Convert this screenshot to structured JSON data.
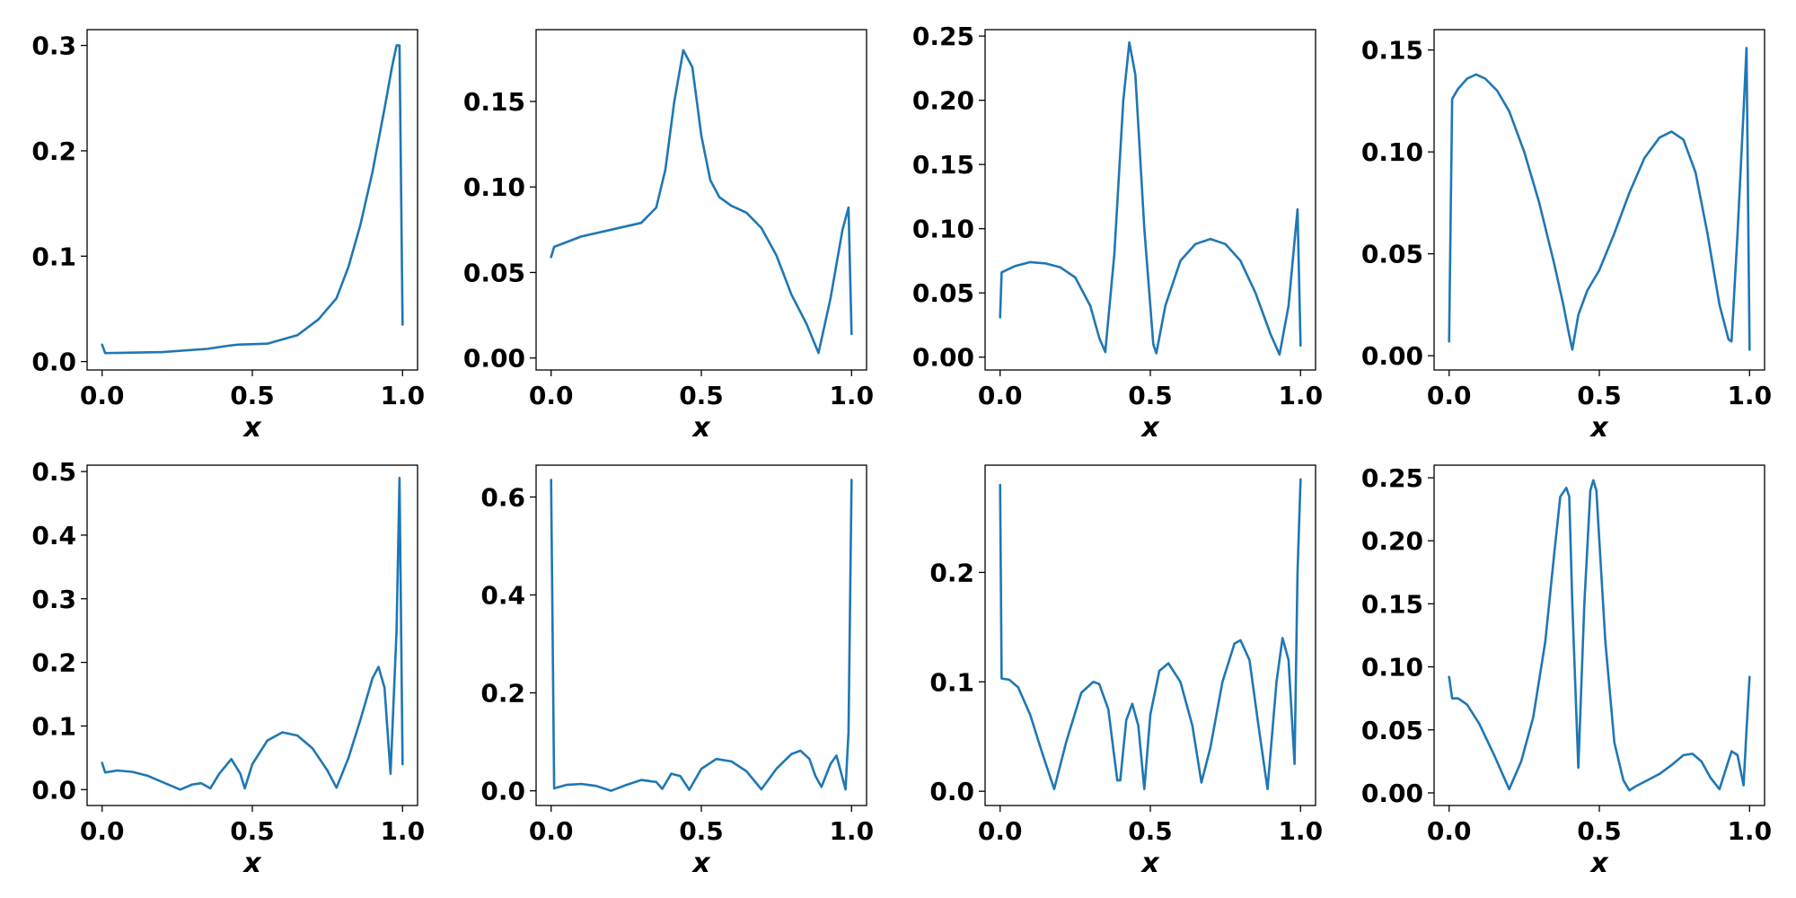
{
  "colors": {
    "line": "#1f77b4"
  },
  "chart_data": [
    {
      "type": "line",
      "xlabel": "x",
      "xlim": [
        -0.05,
        1.05
      ],
      "ylim": [
        -0.008,
        0.315
      ],
      "xticks": [
        0.0,
        0.5,
        1.0
      ],
      "xtick_labels": [
        "0.0",
        "0.5",
        "1.0"
      ],
      "yticks": [
        0.0,
        0.1,
        0.2,
        0.3
      ],
      "ytick_labels": [
        "0.0",
        "0.1",
        "0.2",
        "0.3"
      ],
      "series": [
        {
          "x": [
            0.0,
            0.01,
            0.2,
            0.35,
            0.42,
            0.45,
            0.55,
            0.65,
            0.72,
            0.78,
            0.82,
            0.86,
            0.9,
            0.94,
            0.965,
            0.98,
            0.99,
            1.0
          ],
          "y": [
            0.016,
            0.008,
            0.009,
            0.012,
            0.015,
            0.016,
            0.017,
            0.025,
            0.04,
            0.06,
            0.09,
            0.13,
            0.18,
            0.24,
            0.28,
            0.3,
            0.3,
            0.035
          ]
        }
      ]
    },
    {
      "type": "line",
      "xlabel": "x",
      "xlim": [
        -0.05,
        1.05
      ],
      "ylim": [
        -0.007,
        0.192
      ],
      "xticks": [
        0.0,
        0.5,
        1.0
      ],
      "xtick_labels": [
        "0.0",
        "0.5",
        "1.0"
      ],
      "yticks": [
        0.0,
        0.05,
        0.1,
        0.15
      ],
      "ytick_labels": [
        "0.00",
        "0.05",
        "0.10",
        "0.15"
      ],
      "series": [
        {
          "x": [
            0.0,
            0.01,
            0.1,
            0.2,
            0.3,
            0.35,
            0.38,
            0.41,
            0.44,
            0.47,
            0.5,
            0.53,
            0.56,
            0.6,
            0.65,
            0.7,
            0.75,
            0.8,
            0.85,
            0.89,
            0.93,
            0.97,
            0.99,
            1.0
          ],
          "y": [
            0.059,
            0.065,
            0.071,
            0.075,
            0.079,
            0.088,
            0.11,
            0.15,
            0.18,
            0.17,
            0.13,
            0.104,
            0.094,
            0.089,
            0.085,
            0.076,
            0.06,
            0.037,
            0.02,
            0.003,
            0.035,
            0.075,
            0.088,
            0.014
          ]
        }
      ]
    },
    {
      "type": "line",
      "xlabel": "x",
      "xlim": [
        -0.05,
        1.05
      ],
      "ylim": [
        -0.01,
        0.255
      ],
      "xticks": [
        0.0,
        0.5,
        1.0
      ],
      "xtick_labels": [
        "0.0",
        "0.5",
        "1.0"
      ],
      "yticks": [
        0.0,
        0.05,
        0.1,
        0.15,
        0.2,
        0.25
      ],
      "ytick_labels": [
        "0.00",
        "0.05",
        "0.10",
        "0.15",
        "0.20",
        "0.25"
      ],
      "series": [
        {
          "x": [
            0.0,
            0.005,
            0.05,
            0.1,
            0.15,
            0.2,
            0.25,
            0.3,
            0.33,
            0.35,
            0.38,
            0.41,
            0.43,
            0.45,
            0.48,
            0.51,
            0.52,
            0.55,
            0.6,
            0.65,
            0.7,
            0.75,
            0.8,
            0.85,
            0.9,
            0.93,
            0.96,
            0.99,
            1.0
          ],
          "y": [
            0.031,
            0.066,
            0.071,
            0.074,
            0.073,
            0.07,
            0.062,
            0.04,
            0.015,
            0.004,
            0.08,
            0.2,
            0.245,
            0.22,
            0.1,
            0.01,
            0.003,
            0.04,
            0.075,
            0.088,
            0.092,
            0.088,
            0.075,
            0.05,
            0.018,
            0.002,
            0.04,
            0.115,
            0.009
          ]
        }
      ]
    },
    {
      "type": "line",
      "xlabel": "x",
      "xlim": [
        -0.05,
        1.05
      ],
      "ylim": [
        -0.007,
        0.16
      ],
      "xticks": [
        0.0,
        0.5,
        1.0
      ],
      "xtick_labels": [
        "0.0",
        "0.5",
        "1.0"
      ],
      "yticks": [
        0.0,
        0.05,
        0.1,
        0.15
      ],
      "ytick_labels": [
        "0.00",
        "0.05",
        "0.10",
        "0.15"
      ],
      "series": [
        {
          "x": [
            0.0,
            0.01,
            0.03,
            0.06,
            0.09,
            0.12,
            0.16,
            0.2,
            0.25,
            0.3,
            0.35,
            0.38,
            0.4,
            0.41,
            0.43,
            0.46,
            0.5,
            0.55,
            0.6,
            0.65,
            0.7,
            0.74,
            0.78,
            0.82,
            0.86,
            0.9,
            0.93,
            0.94,
            0.96,
            0.98,
            0.99,
            1.0
          ],
          "y": [
            0.007,
            0.126,
            0.131,
            0.136,
            0.138,
            0.136,
            0.13,
            0.12,
            0.1,
            0.075,
            0.045,
            0.025,
            0.01,
            0.003,
            0.02,
            0.032,
            0.042,
            0.06,
            0.08,
            0.097,
            0.107,
            0.11,
            0.106,
            0.09,
            0.06,
            0.025,
            0.008,
            0.007,
            0.06,
            0.12,
            0.151,
            0.003
          ]
        }
      ]
    },
    {
      "type": "line",
      "xlabel": "x",
      "xlim": [
        -0.05,
        1.05
      ],
      "ylim": [
        -0.025,
        0.51
      ],
      "xticks": [
        0.0,
        0.5,
        1.0
      ],
      "xtick_labels": [
        "0.0",
        "0.5",
        "1.0"
      ],
      "yticks": [
        0.0,
        0.1,
        0.2,
        0.3,
        0.4,
        0.5
      ],
      "ytick_labels": [
        "0.0",
        "0.1",
        "0.2",
        "0.3",
        "0.4",
        "0.5"
      ],
      "series": [
        {
          "x": [
            0.0,
            0.01,
            0.05,
            0.1,
            0.15,
            0.2,
            0.26,
            0.3,
            0.33,
            0.36,
            0.39,
            0.43,
            0.46,
            0.475,
            0.5,
            0.55,
            0.6,
            0.65,
            0.7,
            0.75,
            0.78,
            0.82,
            0.86,
            0.9,
            0.92,
            0.94,
            0.96,
            0.98,
            0.99,
            1.0
          ],
          "y": [
            0.042,
            0.027,
            0.03,
            0.028,
            0.022,
            0.012,
            0.0,
            0.008,
            0.01,
            0.002,
            0.025,
            0.048,
            0.025,
            0.002,
            0.04,
            0.077,
            0.09,
            0.085,
            0.065,
            0.03,
            0.003,
            0.05,
            0.11,
            0.175,
            0.193,
            0.16,
            0.025,
            0.25,
            0.49,
            0.04
          ]
        }
      ]
    },
    {
      "type": "line",
      "xlabel": "x",
      "xlim": [
        -0.05,
        1.05
      ],
      "ylim": [
        -0.03,
        0.665
      ],
      "xticks": [
        0.0,
        0.5,
        1.0
      ],
      "xtick_labels": [
        "0.0",
        "0.5",
        "1.0"
      ],
      "yticks": [
        0.0,
        0.2,
        0.4,
        0.6
      ],
      "ytick_labels": [
        "0.0",
        "0.2",
        "0.4",
        "0.6"
      ],
      "series": [
        {
          "x": [
            0.0,
            0.01,
            0.05,
            0.1,
            0.15,
            0.2,
            0.25,
            0.3,
            0.35,
            0.37,
            0.4,
            0.43,
            0.46,
            0.5,
            0.55,
            0.6,
            0.65,
            0.7,
            0.75,
            0.8,
            0.83,
            0.86,
            0.88,
            0.9,
            0.93,
            0.95,
            0.98,
            0.99,
            1.0
          ],
          "y": [
            0.635,
            0.005,
            0.012,
            0.014,
            0.01,
            0.0,
            0.012,
            0.022,
            0.018,
            0.004,
            0.035,
            0.03,
            0.002,
            0.045,
            0.065,
            0.06,
            0.04,
            0.003,
            0.045,
            0.075,
            0.082,
            0.065,
            0.03,
            0.008,
            0.055,
            0.072,
            0.003,
            0.12,
            0.635
          ]
        }
      ]
    },
    {
      "type": "line",
      "xlabel": "x",
      "xlim": [
        -0.05,
        1.05
      ],
      "ylim": [
        -0.013,
        0.298
      ],
      "xticks": [
        0.0,
        0.5,
        1.0
      ],
      "xtick_labels": [
        "0.0",
        "0.5",
        "1.0"
      ],
      "yticks": [
        0.0,
        0.1,
        0.2
      ],
      "ytick_labels": [
        "0.0",
        "0.1",
        "0.2"
      ],
      "series": [
        {
          "x": [
            0.0,
            0.005,
            0.03,
            0.06,
            0.1,
            0.14,
            0.18,
            0.22,
            0.27,
            0.31,
            0.33,
            0.36,
            0.39,
            0.4,
            0.42,
            0.44,
            0.46,
            0.48,
            0.5,
            0.53,
            0.56,
            0.6,
            0.64,
            0.67,
            0.7,
            0.74,
            0.78,
            0.8,
            0.83,
            0.86,
            0.89,
            0.92,
            0.94,
            0.96,
            0.98,
            0.99,
            1.0
          ],
          "y": [
            0.28,
            0.103,
            0.102,
            0.095,
            0.07,
            0.035,
            0.002,
            0.045,
            0.09,
            0.1,
            0.098,
            0.075,
            0.01,
            0.01,
            0.065,
            0.08,
            0.06,
            0.002,
            0.07,
            0.11,
            0.117,
            0.1,
            0.06,
            0.008,
            0.04,
            0.1,
            0.135,
            0.138,
            0.12,
            0.06,
            0.002,
            0.1,
            0.14,
            0.12,
            0.025,
            0.2,
            0.285
          ]
        }
      ]
    },
    {
      "type": "line",
      "xlabel": "x",
      "xlim": [
        -0.05,
        1.05
      ],
      "ylim": [
        -0.01,
        0.26
      ],
      "xticks": [
        0.0,
        0.5,
        1.0
      ],
      "xtick_labels": [
        "0.0",
        "0.5",
        "1.0"
      ],
      "yticks": [
        0.0,
        0.05,
        0.1,
        0.15,
        0.2,
        0.25
      ],
      "ytick_labels": [
        "0.00",
        "0.05",
        "0.10",
        "0.15",
        "0.20",
        "0.25"
      ],
      "series": [
        {
          "x": [
            0.0,
            0.01,
            0.03,
            0.06,
            0.1,
            0.15,
            0.2,
            0.24,
            0.28,
            0.32,
            0.35,
            0.37,
            0.39,
            0.4,
            0.41,
            0.43,
            0.45,
            0.47,
            0.48,
            0.49,
            0.5,
            0.52,
            0.55,
            0.58,
            0.6,
            0.62,
            0.66,
            0.7,
            0.74,
            0.78,
            0.81,
            0.84,
            0.87,
            0.9,
            0.92,
            0.94,
            0.96,
            0.98,
            0.99,
            1.0
          ],
          "y": [
            0.092,
            0.075,
            0.075,
            0.07,
            0.055,
            0.03,
            0.003,
            0.025,
            0.06,
            0.12,
            0.19,
            0.235,
            0.242,
            0.235,
            0.15,
            0.02,
            0.15,
            0.24,
            0.248,
            0.24,
            0.2,
            0.12,
            0.04,
            0.01,
            0.002,
            0.005,
            0.01,
            0.015,
            0.022,
            0.03,
            0.031,
            0.025,
            0.012,
            0.003,
            0.018,
            0.033,
            0.03,
            0.006,
            0.05,
            0.092
          ]
        }
      ]
    }
  ]
}
